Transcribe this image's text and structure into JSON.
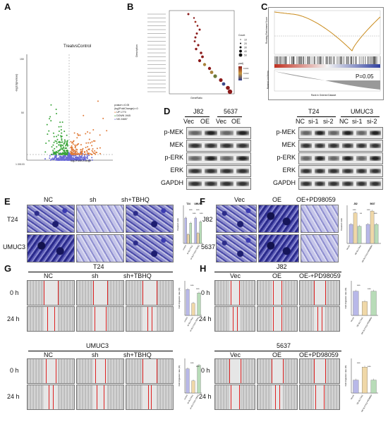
{
  "panels": {
    "A": "A",
    "B": "B",
    "C": "C",
    "D": "D",
    "E": "E",
    "F": "F",
    "G": "G",
    "H": "H"
  },
  "volcano": {
    "title": "TreatvsControl",
    "xlabel": "log2FoldChange",
    "ylabel": "-log10(pvalue)",
    "yticks": [
      "150",
      "50",
      "1.30103"
    ],
    "legend_title_1": "pvalue<=0.05",
    "legend_title_2": "|log2FoldChange|>=0",
    "legend_items": [
      "UP 1770",
      "DOWN 1945",
      "NS 24657"
    ],
    "colors": {
      "up": "#e07b39",
      "down": "#3aa53a",
      "ns": "#6b6bd6"
    }
  },
  "dotplot": {
    "xlabel": "GeneRatio",
    "ylabel": "Description",
    "legend_count": "Count",
    "legend_padj": "padj",
    "count_values": [
      "10",
      "20",
      "30",
      "40",
      "50"
    ],
    "padj_values": [
      "0.001",
      "0.002",
      "0.003"
    ]
  },
  "gsea": {
    "ylabel_top": "Running Enrichment Score",
    "ylabel_bottom": "Ranked List Metric",
    "xlabel": "Rank in Ordered Dataset",
    "pvalue": "P=0.05"
  },
  "wb_left": {
    "groups": [
      "J82",
      "5637"
    ],
    "lanes": [
      "Vec",
      "OE",
      "Vec",
      "OE"
    ],
    "rows": [
      "p-MEK",
      "MEK",
      "p-ERK",
      "ERK",
      "GAPDH"
    ]
  },
  "wb_right": {
    "groups": [
      "T24",
      "UMUC3"
    ],
    "lanes": [
      "NC",
      "si-1",
      "si-2",
      "NC",
      "si-1",
      "si-2"
    ],
    "rows": [
      "p-MEK",
      "MEK",
      "p-ERK",
      "ERK",
      "GAPDH"
    ]
  },
  "panelE": {
    "cols": [
      "NC",
      "sh",
      "sh+TBHQ"
    ],
    "rows": [
      "T24",
      "UMUC3"
    ],
    "chart_groups": [
      "T24",
      "UMUC3"
    ],
    "chart_ylabel": "Invasion ratio",
    "sig": [
      "***",
      "***",
      "***",
      "***"
    ],
    "legend": [
      "control",
      "sh-SLC7A11",
      "sh-SLC7A11+TBHQ"
    ]
  },
  "panelF": {
    "cols": [
      "Vec",
      "OE",
      "OE+PD98059"
    ],
    "rows": [
      "J82",
      "5637"
    ],
    "chart_groups": [
      "J82",
      "5637"
    ],
    "chart_ylabel": "Invasion ratio",
    "sig": [
      "***",
      "**",
      "***",
      "***"
    ],
    "legend": [
      "Vector",
      "OE-SLC7A11",
      "OE-SLC7A11+PD98059"
    ]
  },
  "panelG": {
    "top_group": "T24",
    "bottom_group": "UMUC3",
    "cols": [
      "NC",
      "sh",
      "sh+TBHQ"
    ],
    "rows": [
      "0 h",
      "24 h"
    ],
    "chart_ylabel": "Cell migration rate (%)",
    "sig": [
      "***",
      "***"
    ],
    "legend": [
      "control",
      "sh-SLC7A11",
      "sh-SLC7A11+TBHQ"
    ],
    "scalebar": "400 μm"
  },
  "panelH": {
    "top_group": "J82",
    "bottom_group": "5637",
    "cols_top": [
      "Vec",
      "OE",
      "OE-+PD98059"
    ],
    "cols_bottom": [
      "Vec",
      "OE",
      "OE+PD98059"
    ],
    "rows": [
      "0 h",
      "24 h"
    ],
    "chart_ylabel": "Cell migration rate (%)",
    "sig": [
      "***",
      "***"
    ],
    "legend": [
      "Vector",
      "OE-SLC7A11",
      "OE-SLC7A11+PD98059"
    ],
    "scalebar": "400 μm"
  },
  "chart_data": [
    {
      "type": "bar",
      "panel": "E",
      "categories": [
        "T24",
        "UMUC3"
      ],
      "series": [
        {
          "name": "control",
          "values": [
            1.0,
            1.0
          ]
        },
        {
          "name": "sh-SLC7A11",
          "values": [
            0.35,
            0.4
          ]
        },
        {
          "name": "sh-SLC7A11+TBHQ",
          "values": [
            0.8,
            0.85
          ]
        }
      ],
      "ylabel": "Invasion ratio",
      "ylim": [
        0,
        1.5
      ]
    },
    {
      "type": "bar",
      "panel": "F",
      "categories": [
        "J82",
        "5637"
      ],
      "series": [
        {
          "name": "Vector",
          "values": [
            1.0,
            1.0
          ]
        },
        {
          "name": "OE-SLC7A11",
          "values": [
            1.6,
            1.7
          ]
        },
        {
          "name": "OE-SLC7A11+PD98059",
          "values": [
            0.9,
            1.0
          ]
        }
      ],
      "ylabel": "Invasion ratio",
      "ylim": [
        0,
        2.0
      ]
    },
    {
      "type": "bar",
      "panel": "G-top",
      "categories": [
        "control",
        "sh-SLC7A11",
        "sh-SLC7A11+TBHQ"
      ],
      "values": [
        75,
        35,
        65
      ],
      "ylabel": "Cell migration rate (%)",
      "ylim": [
        0,
        100
      ]
    },
    {
      "type": "bar",
      "panel": "G-bottom",
      "categories": [
        "control",
        "sh-SLC7A11",
        "sh-SLC7A11+TBHQ"
      ],
      "values": [
        70,
        35,
        80
      ],
      "ylabel": "Cell migration rate (%)",
      "ylim": [
        0,
        100
      ]
    },
    {
      "type": "bar",
      "panel": "H-top",
      "categories": [
        "Vector",
        "OE-SLC7A11",
        "OE-SLC7A11+PD98059"
      ],
      "values": [
        70,
        40,
        70
      ],
      "ylabel": "Cell migration rate (%)",
      "ylim": [
        0,
        100
      ]
    },
    {
      "type": "bar",
      "panel": "H-bottom",
      "categories": [
        "Vector",
        "OE-SLC7A11",
        "OE-SLC7A11+PD98059"
      ],
      "values": [
        30,
        60,
        30
      ],
      "ylabel": "Cell migration rate (%)",
      "ylim": [
        0,
        80
      ]
    }
  ]
}
